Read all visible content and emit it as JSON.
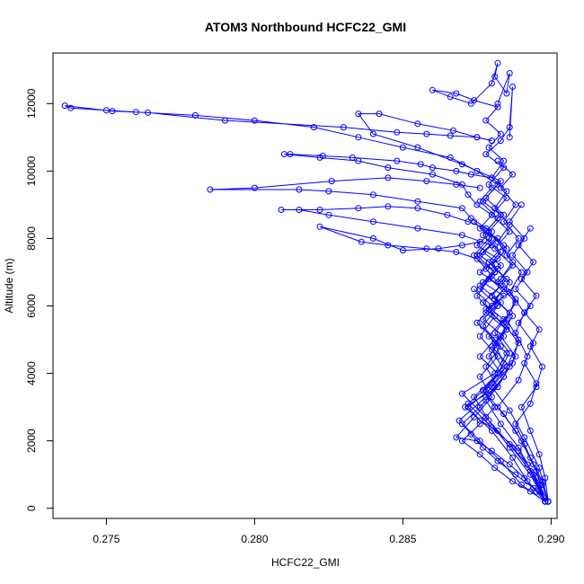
{
  "chart_data": {
    "type": "line",
    "title": "ATOM3 Northbound HCFC22_GMI",
    "xlabel": "HCFC22_GMI",
    "ylabel": "Altitude (m)",
    "xlim": [
      0.2732,
      0.2902
    ],
    "ylim": [
      -300,
      13500
    ],
    "x_ticks": [
      0.275,
      0.28,
      0.285,
      0.29
    ],
    "x_tick_labels": [
      "0.275",
      "0.280",
      "0.285",
      "0.290"
    ],
    "y_ticks": [
      0,
      2000,
      4000,
      6000,
      8000,
      10000,
      12000
    ],
    "y_tick_labels": [
      "0",
      "2000",
      "4000",
      "6000",
      "8000",
      "10000",
      "12000"
    ],
    "grid": false,
    "legend": "none",
    "series_color": "#0000ff",
    "markers": "open-circle",
    "series": [
      {
        "x": [
          0.2898,
          0.2895,
          0.2889,
          0.288,
          0.2872,
          0.288,
          0.2884,
          0.2881,
          0.2885,
          0.2878,
          0.2886,
          0.2879,
          0.2883,
          0.2877,
          0.2882,
          0.2876,
          0.288,
          0.2875,
          0.2872,
          0.287,
          0.286,
          0.2845,
          0.2835,
          0.2822,
          0.281,
          0.2812,
          0.2823,
          0.2833,
          0.2848,
          0.2856,
          0.286,
          0.2868,
          0.2873,
          0.288
        ],
        "y": [
          200,
          900,
          1700,
          2400,
          3100,
          3700,
          4300,
          4900,
          5400,
          5900,
          6400,
          6800,
          7200,
          7600,
          8000,
          8300,
          8700,
          9000,
          9300,
          9600,
          9900,
          10100,
          10300,
          10400,
          10500,
          10500,
          10450,
          10400,
          10300,
          10200,
          10100,
          10000,
          9900,
          9800
        ]
      },
      {
        "x": [
          0.2898,
          0.2893,
          0.2886,
          0.2878,
          0.287,
          0.2881,
          0.2885,
          0.2879,
          0.2884,
          0.2877,
          0.2883,
          0.2876,
          0.2882,
          0.2875,
          0.288,
          0.2873,
          0.287,
          0.2855,
          0.284,
          0.2825,
          0.2815,
          0.2785,
          0.28,
          0.2826,
          0.2845,
          0.2858,
          0.2868,
          0.2876
        ],
        "y": [
          200,
          1100,
          1900,
          2700,
          3400,
          4000,
          4600,
          5100,
          5600,
          6100,
          6600,
          7000,
          7400,
          7800,
          8200,
          8600,
          8900,
          9100,
          9300,
          9400,
          9450,
          9450,
          9500,
          9700,
          9800,
          9700,
          9600,
          9500
        ]
      },
      {
        "x": [
          0.2899,
          0.2892,
          0.2887,
          0.288,
          0.2871,
          0.2882,
          0.2886,
          0.288,
          0.2885,
          0.2878,
          0.2884,
          0.2877,
          0.2882,
          0.2876,
          0.288,
          0.287,
          0.2855,
          0.284,
          0.2825,
          0.2815,
          0.2809,
          0.2822,
          0.2835,
          0.2845,
          0.2855,
          0.2865,
          0.2872,
          0.2878
        ],
        "y": [
          200,
          800,
          1500,
          2300,
          3000,
          3600,
          4200,
          4800,
          5300,
          5800,
          6300,
          6700,
          7100,
          7500,
          7800,
          8100,
          8300,
          8500,
          8700,
          8850,
          8850,
          8850,
          8900,
          8950,
          8900,
          8700,
          8500,
          8300
        ]
      },
      {
        "x": [
          0.2898,
          0.289,
          0.2883,
          0.2876,
          0.2869,
          0.2878,
          0.2884,
          0.2879,
          0.2884,
          0.2877,
          0.2883,
          0.2876,
          0.2881,
          0.2875,
          0.2868,
          0.2858,
          0.2845,
          0.2836,
          0.2822,
          0.284,
          0.285,
          0.2862,
          0.287,
          0.2876
        ],
        "y": [
          200,
          700,
          1400,
          2000,
          2600,
          3300,
          3900,
          4500,
          5100,
          5600,
          6100,
          6600,
          7000,
          7400,
          7600,
          7700,
          7800,
          7900,
          8350,
          8000,
          7650,
          7700,
          7800,
          7900
        ]
      },
      {
        "x": [
          0.2898,
          0.2893,
          0.2886,
          0.2879,
          0.2874,
          0.2882,
          0.2886,
          0.2881,
          0.2886,
          0.288,
          0.2885,
          0.2879,
          0.2884,
          0.2878,
          0.2883,
          0.2877,
          0.2882,
          0.2875,
          0.2866,
          0.285,
          0.2835,
          0.282,
          0.28,
          0.278,
          0.276,
          0.275,
          0.2738,
          0.2736,
          0.2752,
          0.2764,
          0.279,
          0.283,
          0.2848,
          0.2858,
          0.2866,
          0.2875,
          0.288
        ],
        "y": [
          200,
          1000,
          1800,
          2600,
          3300,
          4000,
          4600,
          5200,
          5800,
          6300,
          6800,
          7300,
          7800,
          8200,
          8700,
          9100,
          9600,
          10000,
          10400,
          10700,
          11000,
          11300,
          11500,
          11650,
          11750,
          11800,
          11870,
          11940,
          11780,
          11730,
          11500,
          11300,
          11150,
          11100,
          11050,
          11000,
          10900
        ]
      },
      {
        "x": [
          0.2898,
          0.2894,
          0.2889,
          0.2883,
          0.2878,
          0.2884,
          0.2888,
          0.2883,
          0.2887,
          0.2881,
          0.2886,
          0.288,
          0.2885,
          0.2879,
          0.2884,
          0.2878,
          0.2883,
          0.287,
          0.2855,
          0.284,
          0.2835,
          0.2842,
          0.2855,
          0.2867,
          0.2875,
          0.288
        ],
        "y": [
          200,
          1000,
          1800,
          2500,
          3200,
          3900,
          4500,
          5100,
          5700,
          6200,
          6700,
          7200,
          7700,
          8200,
          8700,
          9200,
          9700,
          10200,
          10700,
          11100,
          11700,
          11700,
          11400,
          11200,
          11000,
          10900
        ]
      },
      {
        "x": [
          0.2899,
          0.2896,
          0.2891,
          0.2886,
          0.288,
          0.2887,
          0.2889,
          0.2885,
          0.2888,
          0.2883,
          0.2887,
          0.2882,
          0.2886,
          0.2881,
          0.2885,
          0.288,
          0.2884,
          0.2879,
          0.2883,
          0.2878,
          0.2882,
          0.2874,
          0.2868,
          0.286,
          0.2866,
          0.2873,
          0.288,
          0.2882,
          0.2881,
          0.2885,
          0.2886,
          0.2882
        ],
        "y": [
          200,
          1200,
          2100,
          2900,
          3600,
          4300,
          5000,
          5600,
          6200,
          6800,
          7300,
          7900,
          8400,
          8900,
          9400,
          9800,
          10300,
          10700,
          11100,
          11500,
          11900,
          12100,
          12300,
          12400,
          12200,
          12000,
          12600,
          13200,
          12800,
          12300,
          12900,
          12000
        ]
      },
      {
        "x": [
          0.2898,
          0.2895,
          0.289,
          0.2884,
          0.2877,
          0.2885,
          0.2889,
          0.2884,
          0.2888,
          0.2882,
          0.2887,
          0.2881,
          0.2886,
          0.288,
          0.2885,
          0.2879,
          0.2884,
          0.2878,
          0.2883,
          0.2886,
          0.2887,
          0.2886
        ],
        "y": [
          200,
          1100,
          2000,
          2800,
          3500,
          4200,
          4900,
          5500,
          6100,
          6700,
          7200,
          7700,
          8200,
          8700,
          9200,
          9600,
          10100,
          10500,
          10900,
          11300,
          12500,
          11000
        ]
      },
      {
        "x": [
          0.2899,
          0.2897,
          0.2893,
          0.2888,
          0.2882,
          0.2889,
          0.2892,
          0.2888,
          0.2891,
          0.2886,
          0.289,
          0.2885,
          0.2889,
          0.2884,
          0.2888,
          0.2883,
          0.2887,
          0.2882
        ],
        "y": [
          200,
          800,
          1500,
          2300,
          3000,
          3800,
          4500,
          5200,
          5800,
          6400,
          7000,
          7500,
          8000,
          8500,
          9000,
          9500,
          9900,
          10300
        ]
      },
      {
        "x": [
          0.2899,
          0.2896,
          0.2892,
          0.2887,
          0.2882,
          0.2876,
          0.2872,
          0.2879,
          0.2884,
          0.288,
          0.2885,
          0.2879,
          0.2884,
          0.2878,
          0.2883,
          0.2877,
          0.2882,
          0.2876,
          0.288
        ],
        "y": [
          200,
          700,
          1300,
          1800,
          2300,
          2600,
          3000,
          3500,
          4100,
          4700,
          5300,
          5900,
          6500,
          7100,
          7600,
          8100,
          8600,
          9100,
          9500
        ]
      },
      {
        "x": [
          0.2899,
          0.2894,
          0.2888,
          0.2882,
          0.2877,
          0.2873,
          0.287,
          0.2876,
          0.2882,
          0.2878,
          0.2883,
          0.2877,
          0.2882,
          0.2876,
          0.2881,
          0.2875,
          0.288,
          0.2874
        ],
        "y": [
          200,
          600,
          1000,
          1400,
          1800,
          2200,
          2500,
          3000,
          3600,
          4200,
          4800,
          5400,
          6000,
          6500,
          7000,
          7500,
          8000,
          8500
        ]
      },
      {
        "x": [
          0.2898,
          0.2895,
          0.2891,
          0.2886,
          0.288,
          0.2875,
          0.2868,
          0.2874,
          0.288,
          0.2876,
          0.2882,
          0.2876,
          0.2881,
          0.2875,
          0.288,
          0.2874,
          0.2879
        ],
        "y": [
          200,
          500,
          900,
          1300,
          1700,
          2000,
          2100,
          2700,
          3300,
          3900,
          4500,
          5100,
          5700,
          6300,
          6900,
          7500,
          8000
        ]
      },
      {
        "x": [
          0.2899,
          0.2897,
          0.2894,
          0.2891,
          0.2888,
          0.2893,
          0.2895,
          0.2891,
          0.2894,
          0.2889,
          0.2893,
          0.2888,
          0.2892,
          0.2887,
          0.2891,
          0.2886,
          0.289
        ],
        "y": [
          200,
          700,
          1300,
          1900,
          2500,
          3100,
          3700,
          4300,
          4900,
          5500,
          6000,
          6500,
          7000,
          7500,
          8000,
          8500,
          9000
        ]
      },
      {
        "x": [
          0.2899,
          0.2898,
          0.2896,
          0.2893,
          0.289,
          0.2895,
          0.2897,
          0.2893,
          0.2896,
          0.2891,
          0.2895,
          0.289,
          0.2894,
          0.2889,
          0.2893
        ],
        "y": [
          200,
          900,
          1600,
          2300,
          3000,
          3600,
          4200,
          4800,
          5300,
          5800,
          6300,
          6800,
          7300,
          7800,
          8300
        ]
      },
      {
        "x": [
          0.2898,
          0.2893,
          0.2887,
          0.2881,
          0.2876,
          0.287,
          0.2876,
          0.2881,
          0.2877,
          0.2882,
          0.2876,
          0.2881,
          0.2875,
          0.288,
          0.2874
        ],
        "y": [
          200,
          500,
          800,
          1200,
          1600,
          2000,
          2500,
          3000,
          3500,
          4000,
          4500,
          5000,
          5500,
          6000,
          6500
        ]
      }
    ]
  }
}
